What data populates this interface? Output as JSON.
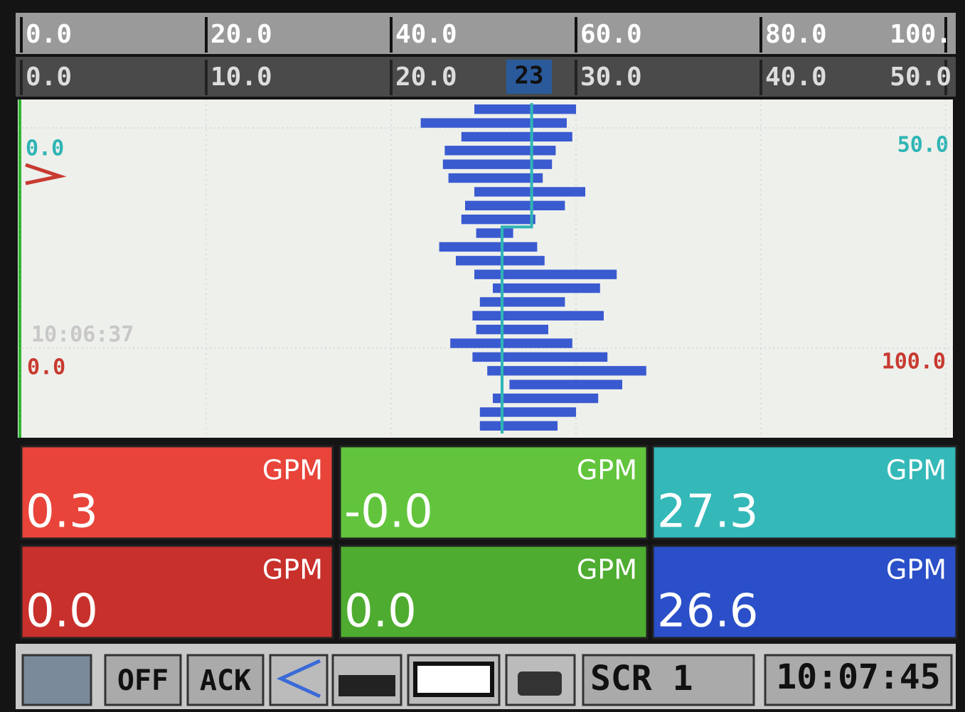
{
  "top_scale": {
    "ticks": [
      {
        "value": 0,
        "label": "0.0"
      },
      {
        "value": 20,
        "label": "20.0"
      },
      {
        "value": 40,
        "label": "40.0"
      },
      {
        "value": 60,
        "label": "60.0"
      },
      {
        "value": 80,
        "label": "80.0"
      },
      {
        "value": 100,
        "label": "100."
      }
    ]
  },
  "bottom_scale": {
    "ticks": [
      {
        "value": 0,
        "label": "0.0"
      },
      {
        "value": 10,
        "label": "10.0"
      },
      {
        "value": 20,
        "label": "20.0"
      },
      {
        "value": 30,
        "label": "30.0"
      },
      {
        "value": 40,
        "label": "40.0"
      },
      {
        "value": 50,
        "label": "50.0"
      }
    ],
    "cursor": "23"
  },
  "trend": {
    "left_label_1": "0.0",
    "right_label_1": "50.0",
    "time_label": "10:06:37",
    "left_label_2": "0.0",
    "right_label_2": "100.0",
    "blue_min": [
      24.5,
      21.6,
      23.8,
      22.9,
      22.8,
      23.1,
      24.5,
      24.0,
      23.8,
      24.6,
      22.6,
      23.5,
      24.5,
      25.5,
      24.8,
      24.4,
      24.6,
      23.2,
      24.4,
      25.2,
      26.4,
      25.5,
      24.8,
      24.8
    ],
    "blue_max": [
      30.0,
      29.5,
      29.8,
      28.9,
      28.7,
      28.2,
      30.5,
      29.4,
      27.8,
      26.6,
      27.9,
      28.3,
      32.2,
      31.3,
      29.4,
      31.5,
      28.5,
      29.8,
      31.7,
      33.8,
      32.5,
      31.2,
      30.0,
      29.0
    ],
    "cyan": [
      27.6,
      27.6,
      27.6,
      27.6,
      27.6,
      27.6,
      27.6,
      27.6,
      27.6,
      26.0,
      26.0,
      26.0,
      26.0,
      26.0,
      26.0,
      26.0,
      26.0,
      26.0,
      26.0,
      26.0,
      26.0,
      26.0,
      26.0,
      26.0
    ]
  },
  "panels": [
    {
      "unit": "GPM",
      "value": "0.3"
    },
    {
      "unit": "GPM",
      "value": "-0.0"
    },
    {
      "unit": "GPM",
      "value": "27.3"
    },
    {
      "unit": "GPM",
      "value": "0.0"
    },
    {
      "unit": "GPM",
      "value": "0.0"
    },
    {
      "unit": "GPM",
      "value": "26.6"
    }
  ],
  "toolbar": {
    "off": "OFF",
    "ack": "ACK",
    "screen": "SCR 1",
    "clock": "10:07:45"
  }
}
